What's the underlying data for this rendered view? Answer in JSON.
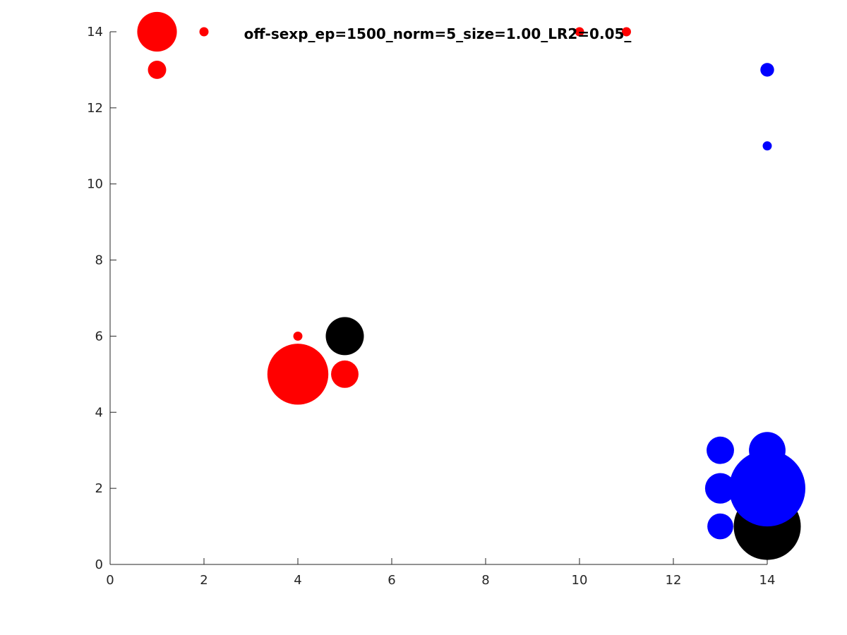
{
  "chart_data": {
    "type": "scatter",
    "title": "off-sexp_ep=1500_norm=5_size=1.00_LR2=0.05_",
    "xlabel": "",
    "ylabel": "",
    "xlim": [
      0,
      14
    ],
    "ylim": [
      0,
      14
    ],
    "xticks": [
      0,
      2,
      4,
      6,
      8,
      10,
      12,
      14
    ],
    "yticks": [
      0,
      2,
      4,
      6,
      8,
      10,
      12,
      14
    ],
    "grid": false,
    "colors": {
      "red": "#ff0000",
      "blue": "#0000ff",
      "black": "#000000"
    },
    "series": [
      {
        "name": "red",
        "color": "#ff0000",
        "points": [
          {
            "x": 1,
            "y": 14,
            "size": 0.52
          },
          {
            "x": 2,
            "y": 14,
            "size": 0.12
          },
          {
            "x": 10,
            "y": 14,
            "size": 0.12
          },
          {
            "x": 11,
            "y": 14,
            "size": 0.12
          },
          {
            "x": 1,
            "y": 13,
            "size": 0.24
          },
          {
            "x": 4,
            "y": 6,
            "size": 0.12
          },
          {
            "x": 4,
            "y": 5,
            "size": 0.8
          },
          {
            "x": 5,
            "y": 5,
            "size": 0.36
          }
        ]
      },
      {
        "name": "black",
        "color": "#000000",
        "points": [
          {
            "x": 5,
            "y": 6,
            "size": 0.5
          },
          {
            "x": 14,
            "y": 1,
            "size": 0.88
          }
        ]
      },
      {
        "name": "blue",
        "color": "#0000ff",
        "points": [
          {
            "x": 14,
            "y": 13,
            "size": 0.18
          },
          {
            "x": 14,
            "y": 11,
            "size": 0.12
          },
          {
            "x": 13,
            "y": 3,
            "size": 0.36
          },
          {
            "x": 14,
            "y": 3,
            "size": 0.48
          },
          {
            "x": 13,
            "y": 2,
            "size": 0.4
          },
          {
            "x": 14,
            "y": 2,
            "size": 1.0
          },
          {
            "x": 13,
            "y": 1,
            "size": 0.34
          }
        ]
      }
    ]
  }
}
